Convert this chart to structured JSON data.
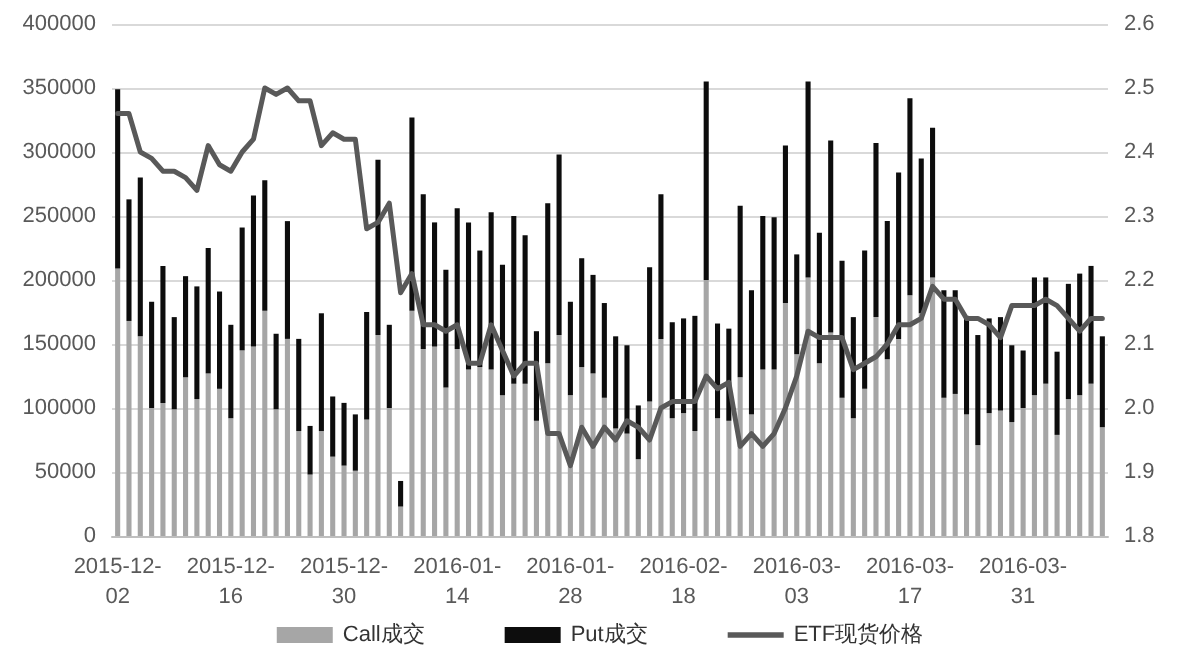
{
  "chart_data": {
    "type": "bar",
    "stacked": true,
    "grid": "y",
    "legend": "bottom",
    "marker": "none",
    "categories": [
      "2015-12-02",
      null,
      null,
      null,
      null,
      null,
      null,
      null,
      null,
      null,
      "2015-12-16",
      null,
      null,
      null,
      null,
      null,
      null,
      null,
      null,
      null,
      "2015-12-30",
      null,
      null,
      null,
      null,
      null,
      null,
      null,
      null,
      null,
      "2016-01-14",
      null,
      null,
      null,
      null,
      null,
      null,
      null,
      null,
      null,
      "2016-01-28",
      null,
      null,
      null,
      null,
      null,
      null,
      null,
      null,
      null,
      "2016-02-18",
      null,
      null,
      null,
      null,
      null,
      null,
      null,
      null,
      null,
      "2016-03-03",
      null,
      null,
      null,
      null,
      null,
      null,
      null,
      null,
      null,
      "2016-03-17",
      null,
      null,
      null,
      null,
      null,
      null,
      null,
      null,
      null,
      "2016-03-31",
      null,
      null,
      null,
      null,
      null,
      null,
      null
    ],
    "ylim": [
      0,
      400000
    ],
    "yticks": [
      0,
      50000,
      100000,
      150000,
      200000,
      250000,
      300000,
      350000,
      400000
    ],
    "y2lim": [
      1.8,
      2.6
    ],
    "y2ticks": [
      1.8,
      1.9,
      {
        "value": 2,
        "label": "2.0"
      },
      2.1,
      2.2,
      2.3,
      2.4,
      2.5,
      2.6
    ],
    "series": [
      {
        "name": "Call成交",
        "color": "#a6a6a6",
        "values": [
          209000,
          168000,
          156000,
          100000,
          104000,
          99000,
          124000,
          107000,
          127000,
          115000,
          92000,
          145000,
          148000,
          176000,
          99000,
          154000,
          82000,
          48000,
          82000,
          62000,
          55000,
          51000,
          91000,
          157000,
          100000,
          23000,
          176000,
          146000,
          148000,
          116000,
          146000,
          130000,
          132000,
          130000,
          110000,
          119000,
          119000,
          90000,
          135000,
          157000,
          110000,
          132000,
          127000,
          108000,
          84000,
          80000,
          60000,
          105000,
          154000,
          92000,
          96000,
          82000,
          200000,
          92000,
          90000,
          124000,
          95000,
          130000,
          130000,
          182000,
          142000,
          202000,
          135000,
          159000,
          108000,
          92000,
          115000,
          171000,
          138000,
          154000,
          188000,
          174000,
          202000,
          108000,
          111000,
          95000,
          71000,
          96000,
          98000,
          89000,
          100000,
          110000,
          119000,
          79000,
          107000,
          110000,
          119000,
          85000
        ]
      },
      {
        "name": "Put成交",
        "color": "#0d0d0d",
        "values": [
          140000,
          95000,
          124000,
          83000,
          107000,
          72000,
          79000,
          88000,
          98000,
          76000,
          73000,
          96000,
          118000,
          102000,
          59000,
          92000,
          72000,
          38000,
          92000,
          47000,
          49000,
          44000,
          84000,
          137000,
          65000,
          20000,
          151000,
          121000,
          97000,
          92000,
          110000,
          115000,
          91000,
          123000,
          102000,
          131000,
          116000,
          70000,
          125000,
          141000,
          73000,
          85000,
          77000,
          74000,
          72000,
          69000,
          42000,
          105000,
          113000,
          75000,
          74000,
          90000,
          155000,
          74000,
          72000,
          134000,
          97000,
          120000,
          119000,
          123000,
          78000,
          153000,
          102000,
          150000,
          107000,
          79000,
          108000,
          136000,
          108000,
          130000,
          154000,
          121000,
          117000,
          84000,
          81000,
          77000,
          86000,
          74000,
          73000,
          60000,
          45000,
          92000,
          83000,
          65000,
          90000,
          95000,
          92000,
          71000
        ]
      },
      {
        "name": "ETF现货价格",
        "type": "line",
        "axis": "y2",
        "color": "#595959",
        "line_style": "solid",
        "values": [
          2.46,
          2.46,
          2.4,
          2.39,
          2.37,
          2.37,
          2.36,
          2.34,
          2.41,
          2.38,
          2.37,
          2.4,
          2.42,
          2.5,
          2.49,
          2.5,
          2.48,
          2.48,
          2.41,
          2.43,
          2.42,
          2.42,
          2.28,
          2.29,
          2.32,
          2.18,
          2.21,
          2.13,
          2.13,
          2.12,
          2.13,
          2.07,
          2.07,
          2.13,
          2.09,
          2.05,
          2.07,
          2.07,
          1.96,
          1.96,
          1.91,
          1.97,
          1.94,
          1.97,
          1.95,
          1.98,
          1.97,
          1.95,
          2.0,
          2.01,
          2.01,
          2.01,
          2.05,
          2.03,
          2.04,
          1.94,
          1.96,
          1.94,
          1.96,
          2.0,
          2.05,
          2.12,
          2.11,
          2.11,
          2.11,
          2.06,
          2.07,
          2.08,
          2.1,
          2.13,
          2.13,
          2.14,
          2.19,
          2.17,
          2.17,
          2.14,
          2.14,
          2.13,
          2.11,
          2.16,
          2.16,
          2.16,
          2.17,
          2.16,
          2.14,
          2.12,
          2.14,
          2.14
        ]
      }
    ]
  }
}
